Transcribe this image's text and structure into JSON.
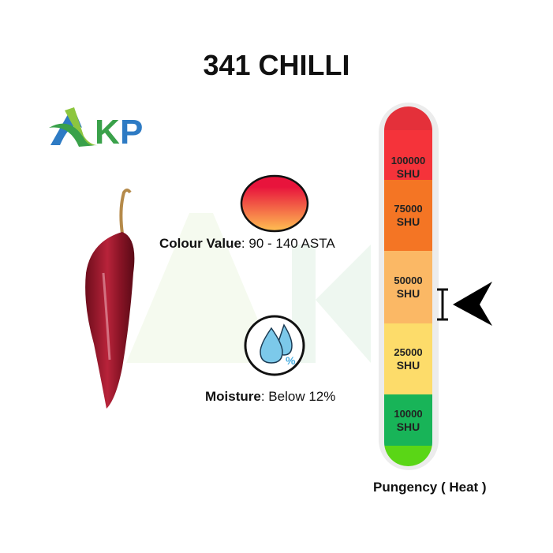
{
  "title": "341 CHILLI",
  "logo": {
    "text": "AKP",
    "colors": [
      "#8dc63f",
      "#2e7bc4",
      "#3aa14a"
    ]
  },
  "colour_value": {
    "label": "Colour Value",
    "value": ": 90 - 140 ASTA"
  },
  "moisture": {
    "label": "Moisture",
    "value": ": Below 12%",
    "icon": "water-drops-percent-icon"
  },
  "scale": {
    "title": "Pungency ( Heat )",
    "levels": [
      {
        "value": "100000",
        "unit": "SHU",
        "color": "#f5333a"
      },
      {
        "value": "75000",
        "unit": "SHU",
        "color": "#f47524"
      },
      {
        "value": "50000",
        "unit": "SHU",
        "color": "#fbb865"
      },
      {
        "value": "25000",
        "unit": "SHU",
        "color": "#fddc6a"
      },
      {
        "value": "10000",
        "unit": "SHU",
        "color": "#18b458"
      }
    ],
    "indicator_level": "50000"
  }
}
